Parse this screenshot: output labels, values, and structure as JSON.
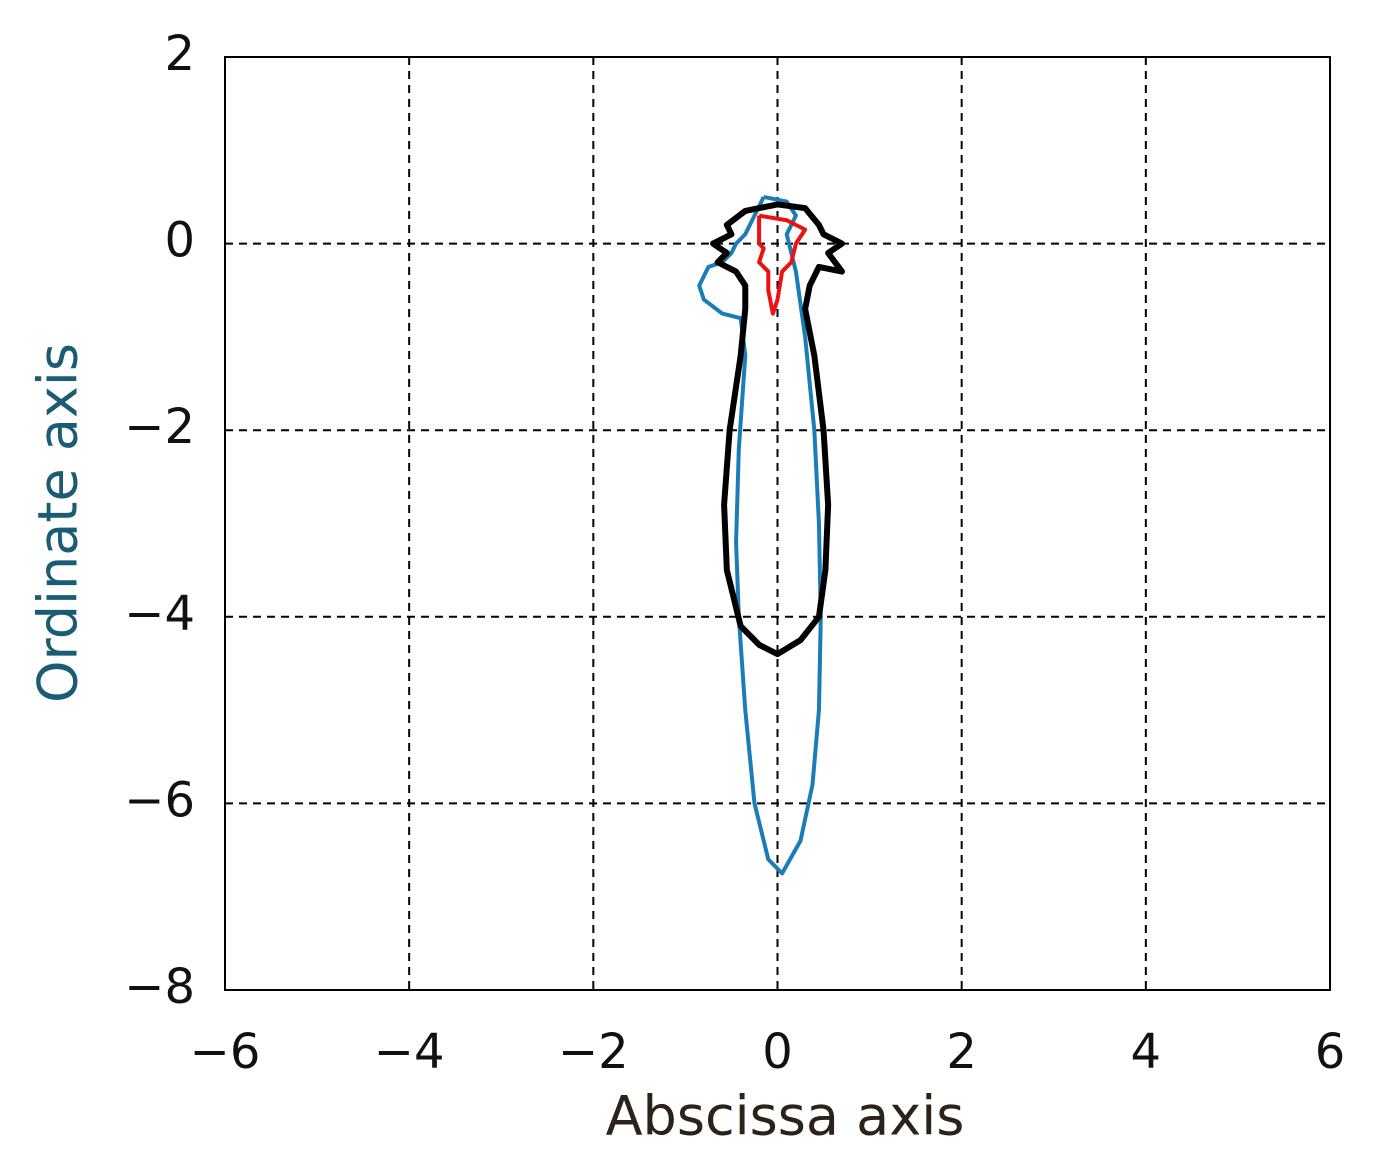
{
  "chart_data": {
    "type": "line",
    "xlabel": "Abscissa axis",
    "ylabel": "Ordinate axis",
    "xlim": [
      -6,
      6
    ],
    "ylim": [
      -8,
      2
    ],
    "xticks": [
      {
        "value": -6,
        "label": "−6"
      },
      {
        "value": -4,
        "label": "−4"
      },
      {
        "value": -2,
        "label": "−2"
      },
      0,
      2,
      4,
      6
    ],
    "yticks": [
      2,
      0,
      {
        "value": -2,
        "label": "−2"
      },
      {
        "value": -4,
        "label": "−4"
      },
      {
        "value": -6,
        "label": "−6"
      },
      {
        "value": -8,
        "label": "−8"
      }
    ],
    "grid": true,
    "series": [
      {
        "color": "#1b7db5",
        "x": [
          -0.15,
          0.1,
          0.2,
          0.1,
          0.2,
          0.3,
          0.4,
          0.45,
          0.47,
          0.45,
          0.38,
          0.25,
          0.05,
          -0.1,
          -0.25,
          -0.35,
          -0.42,
          -0.45,
          -0.42,
          -0.35,
          -0.4,
          -0.6,
          -0.8,
          -0.85,
          -0.75,
          -0.6,
          -0.5,
          -0.45,
          -0.35,
          -0.25,
          -0.15
        ],
        "values": [
          0.5,
          0.45,
          0.3,
          0.1,
          -0.3,
          -1,
          -2,
          -3,
          -4,
          -5,
          -5.8,
          -6.4,
          -6.75,
          -6.6,
          -6,
          -5,
          -4,
          -3.2,
          -2.2,
          -1.2,
          -0.8,
          -0.75,
          -0.6,
          -0.45,
          -0.25,
          -0.2,
          -0.1,
          0,
          0.1,
          0.3,
          0.5
        ]
      },
      {
        "color": "#000000",
        "x": [
          0,
          0.3,
          0.45,
          0.5,
          0.7,
          0.55,
          0.7,
          0.45,
          0.35,
          0.3,
          0.4,
          0.5,
          0.55,
          0.52,
          0.45,
          0.25,
          0,
          -0.2,
          -0.4,
          -0.55,
          -0.58,
          -0.52,
          -0.4,
          -0.35,
          -0.35,
          -0.45,
          -0.65,
          -0.55,
          -0.7,
          -0.5,
          -0.55,
          -0.35,
          0
        ],
        "values": [
          0.42,
          0.38,
          0.2,
          0.1,
          0,
          -0.1,
          -0.3,
          -0.25,
          -0.45,
          -0.7,
          -1.2,
          -2,
          -2.8,
          -3.5,
          -4,
          -4.25,
          -4.4,
          -4.3,
          -4.1,
          -3.5,
          -2.8,
          -2,
          -1.2,
          -0.7,
          -0.45,
          -0.3,
          -0.2,
          -0.1,
          0,
          0.1,
          0.2,
          0.35,
          0.42
        ]
      },
      {
        "color": "#ee1111",
        "x": [
          -0.2,
          0.1,
          0.3,
          0.2,
          0.15,
          0.05,
          0,
          -0.05,
          -0.1,
          -0.1,
          -0.2,
          -0.15,
          -0.2,
          -0.2
        ],
        "values": [
          0.3,
          0.25,
          0.15,
          0,
          -0.2,
          -0.3,
          -0.6,
          -0.75,
          -0.5,
          -0.3,
          -0.2,
          -0.05,
          0,
          0.3
        ]
      }
    ]
  }
}
